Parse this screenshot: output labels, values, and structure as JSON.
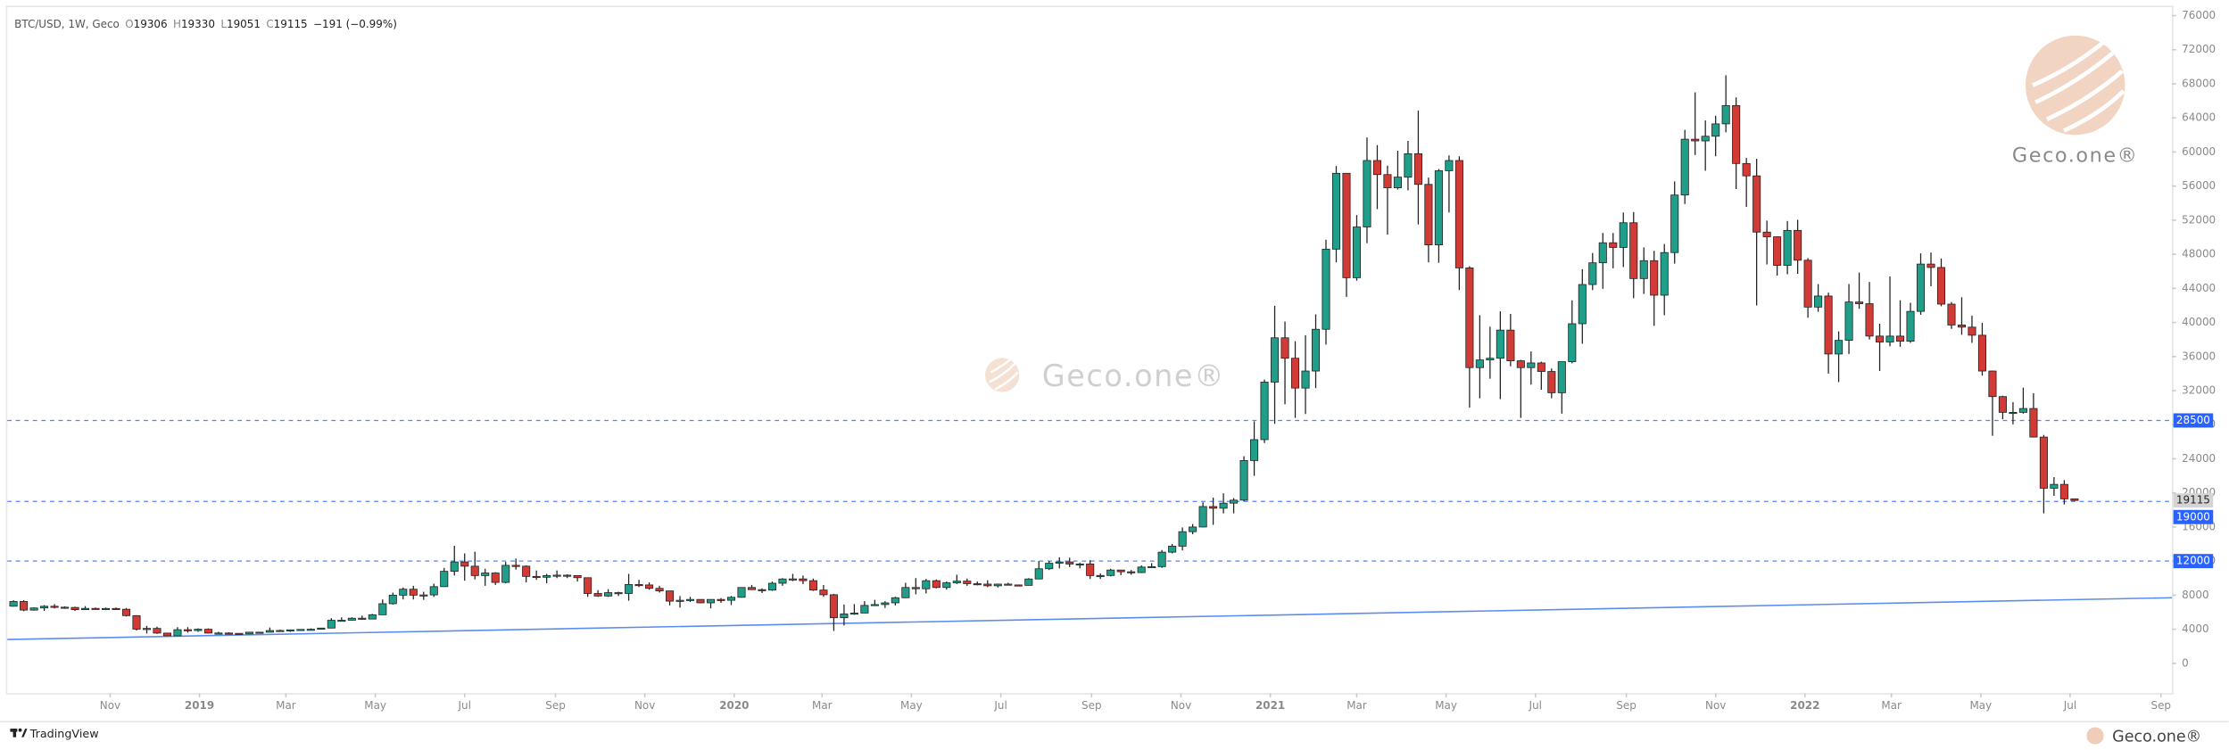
{
  "chart_data": {
    "type": "candlestick",
    "symbol": "BTC/USD, 1W, Geco",
    "ohlc_labels": [
      "O",
      "H",
      "L",
      "C"
    ],
    "change_label": "−191 (−0.99%)",
    "watermark": "Geco.one®",
    "footer_brand": "TradingView",
    "up_color": "#1f9e89",
    "down_color": "#d23a35",
    "hline_color": "#2962ff",
    "trend_color": "#5b8def",
    "grid": false,
    "xlim": [
      -0.6,
      210.5
    ],
    "ylim": [
      -3500,
      77000
    ],
    "yticks": [
      0,
      4000,
      8000,
      12000,
      16000,
      20000,
      24000,
      28000,
      32000,
      36000,
      40000,
      44000,
      48000,
      52000,
      56000,
      60000,
      64000,
      68000,
      72000,
      76000
    ],
    "xticks": [
      {
        "value": 9.43,
        "label": "Nov"
      },
      {
        "value": 18.14,
        "label": "2019"
      },
      {
        "value": 26.57,
        "label": "Mar"
      },
      {
        "value": 35.29,
        "label": "May"
      },
      {
        "value": 44,
        "label": "Jul"
      },
      {
        "value": 52.86,
        "label": "Sep"
      },
      {
        "value": 61.57,
        "label": "Nov"
      },
      {
        "value": 70.29,
        "label": "2020"
      },
      {
        "value": 78.86,
        "label": "Mar"
      },
      {
        "value": 87.57,
        "label": "May"
      },
      {
        "value": 96.29,
        "label": "Jul"
      },
      {
        "value": 105.14,
        "label": "Sep"
      },
      {
        "value": 113.86,
        "label": "Nov"
      },
      {
        "value": 122.57,
        "label": "2021"
      },
      {
        "value": 131,
        "label": "Mar"
      },
      {
        "value": 139.71,
        "label": "May"
      },
      {
        "value": 148.43,
        "label": "Jul"
      },
      {
        "value": 157.29,
        "label": "Sep"
      },
      {
        "value": 166,
        "label": "Nov"
      },
      {
        "value": 174.71,
        "label": "2022"
      },
      {
        "value": 183.14,
        "label": "Mar"
      },
      {
        "value": 191.86,
        "label": "May"
      },
      {
        "value": 200.57,
        "label": "Jul"
      },
      {
        "value": 209.43,
        "label": "Sep"
      }
    ],
    "hlines": [
      28500,
      19000,
      12000
    ],
    "trendline": {
      "x": [
        -0.6,
        210.5
      ],
      "y": [
        2800,
        7700
      ]
    },
    "ohlc": [
      [
        6700,
        7400,
        6650,
        7260
      ],
      [
        7260,
        7410,
        6120,
        6250
      ],
      [
        6250,
        6560,
        6180,
        6500
      ],
      [
        6500,
        6830,
        6150,
        6700
      ],
      [
        6700,
        6960,
        6440,
        6590
      ],
      [
        6590,
        6690,
        6400,
        6560
      ],
      [
        6560,
        6650,
        6150,
        6300
      ],
      [
        6300,
        6720,
        6280,
        6450
      ],
      [
        6450,
        6550,
        6380,
        6410
      ],
      [
        6410,
        6550,
        6320,
        6440
      ],
      [
        6440,
        6550,
        6320,
        6350
      ],
      [
        6350,
        6500,
        5500,
        5600
      ],
      [
        5600,
        5650,
        3850,
        4010
      ],
      [
        4010,
        4400,
        3500,
        4100
      ],
      [
        4100,
        4300,
        3450,
        3550
      ],
      [
        3550,
        3600,
        3200,
        3230
      ],
      [
        3230,
        4250,
        3200,
        3950
      ],
      [
        3950,
        4250,
        3600,
        3850
      ],
      [
        3850,
        4100,
        3700,
        4000
      ],
      [
        4000,
        4100,
        3500,
        3550
      ],
      [
        3550,
        3700,
        3500,
        3560
      ],
      [
        3560,
        3650,
        3450,
        3520
      ],
      [
        3520,
        3550,
        3400,
        3450
      ],
      [
        3450,
        3700,
        3400,
        3660
      ],
      [
        3660,
        3700,
        3550,
        3650
      ],
      [
        3650,
        4200,
        3650,
        3850
      ],
      [
        3850,
        3950,
        3750,
        3860
      ],
      [
        3860,
        3950,
        3700,
        3930
      ],
      [
        3930,
        4010,
        3850,
        3980
      ],
      [
        3980,
        4100,
        3950,
        4000
      ],
      [
        4000,
        4150,
        3950,
        4140
      ],
      [
        4140,
        5300,
        4100,
        5050
      ],
      [
        5050,
        5400,
        4950,
        5060
      ],
      [
        5060,
        5400,
        5000,
        5300
      ],
      [
        5300,
        5600,
        5100,
        5200
      ],
      [
        5200,
        5800,
        5200,
        5700
      ],
      [
        5700,
        7500,
        5700,
        7000
      ],
      [
        7000,
        8300,
        6900,
        8000
      ],
      [
        8000,
        8900,
        7500,
        8700
      ],
      [
        8700,
        9100,
        7500,
        8000
      ],
      [
        8000,
        8400,
        7450,
        8030
      ],
      [
        8030,
        9350,
        7800,
        9000
      ],
      [
        9000,
        11200,
        9000,
        10800
      ],
      [
        10800,
        13800,
        10300,
        11900
      ],
      [
        11900,
        12900,
        9700,
        11400
      ],
      [
        11400,
        13100,
        9850,
        10300
      ],
      [
        10300,
        11100,
        9100,
        10600
      ],
      [
        10600,
        10700,
        9200,
        9500
      ],
      [
        9500,
        11900,
        9400,
        11500
      ],
      [
        11500,
        12300,
        11000,
        11400
      ],
      [
        11400,
        11500,
        9500,
        10200
      ],
      [
        10200,
        10900,
        9800,
        10100
      ],
      [
        10100,
        10500,
        9400,
        10300
      ],
      [
        10300,
        10900,
        10000,
        10350
      ],
      [
        10350,
        10450,
        10000,
        10300
      ],
      [
        10300,
        10350,
        9600,
        10050
      ],
      [
        10050,
        10050,
        7800,
        8200
      ],
      [
        8200,
        8600,
        7800,
        7900
      ],
      [
        7900,
        8700,
        7800,
        8300
      ],
      [
        8300,
        8400,
        7900,
        8200
      ],
      [
        8200,
        10500,
        7350,
        9250
      ],
      [
        9250,
        9800,
        8950,
        9200
      ],
      [
        9200,
        9500,
        8650,
        8800
      ],
      [
        8800,
        9100,
        8300,
        8500
      ],
      [
        8500,
        8500,
        6800,
        7300
      ],
      [
        7300,
        7900,
        6550,
        7400
      ],
      [
        7400,
        7800,
        7200,
        7500
      ],
      [
        7500,
        7500,
        7050,
        7100
      ],
      [
        7100,
        7500,
        6450,
        7500
      ],
      [
        7500,
        7650,
        7100,
        7400
      ],
      [
        7400,
        7900,
        6850,
        7750
      ],
      [
        7750,
        8900,
        7700,
        8900
      ],
      [
        8900,
        9200,
        8600,
        8650
      ],
      [
        8650,
        8800,
        8250,
        8600
      ],
      [
        8600,
        9600,
        8500,
        9400
      ],
      [
        9400,
        10000,
        9100,
        9900
      ],
      [
        9900,
        10500,
        9650,
        9910
      ],
      [
        9910,
        10300,
        9300,
        9700
      ],
      [
        9700,
        9950,
        8500,
        8600
      ],
      [
        8600,
        9200,
        7800,
        8050
      ],
      [
        8050,
        8150,
        3800,
        5350
      ],
      [
        5350,
        6900,
        4450,
        5800
      ],
      [
        5800,
        6950,
        5700,
        5900
      ],
      [
        5900,
        7300,
        5900,
        6800
      ],
      [
        6800,
        7450,
        6750,
        6900
      ],
      [
        6900,
        7300,
        6500,
        7100
      ],
      [
        7100,
        7800,
        6800,
        7700
      ],
      [
        7700,
        9450,
        7650,
        8900
      ],
      [
        8900,
        10000,
        8100,
        8750
      ],
      [
        8750,
        9900,
        8200,
        9700
      ],
      [
        9700,
        9850,
        8800,
        8900
      ],
      [
        8900,
        9600,
        8650,
        9450
      ],
      [
        9450,
        10400,
        9300,
        9650
      ],
      [
        9650,
        9950,
        9100,
        9350
      ],
      [
        9350,
        9600,
        9150,
        9300
      ],
      [
        9300,
        9750,
        8950,
        9100
      ],
      [
        9100,
        9350,
        8900,
        9300
      ],
      [
        9300,
        9450,
        9150,
        9200
      ],
      [
        9200,
        9250,
        9050,
        9150
      ],
      [
        9150,
        10000,
        9150,
        9900
      ],
      [
        9900,
        12000,
        9900,
        11100
      ],
      [
        11100,
        12000,
        10950,
        11750
      ],
      [
        11750,
        12450,
        11150,
        11900
      ],
      [
        11900,
        12400,
        11300,
        11650
      ],
      [
        11650,
        11800,
        11150,
        11660
      ],
      [
        11660,
        12100,
        9900,
        10300
      ],
      [
        10300,
        10550,
        9900,
        10310
      ],
      [
        10310,
        11100,
        10200,
        10950
      ],
      [
        10950,
        10950,
        10350,
        10750
      ],
      [
        10750,
        10950,
        10400,
        10650
      ],
      [
        10650,
        11500,
        10600,
        11300
      ],
      [
        11300,
        11750,
        11250,
        11350
      ],
      [
        11350,
        13300,
        11200,
        13050
      ],
      [
        13050,
        14000,
        12900,
        13750
      ],
      [
        13750,
        15950,
        13250,
        15450
      ],
      [
        15450,
        16350,
        15150,
        16000
      ],
      [
        16000,
        18900,
        15950,
        18400
      ],
      [
        18400,
        19450,
        16250,
        18200
      ],
      [
        18200,
        19950,
        17600,
        18800
      ],
      [
        18800,
        19400,
        17600,
        19150
      ],
      [
        19150,
        24300,
        19000,
        23800
      ],
      [
        23800,
        28400,
        22000,
        26250
      ],
      [
        26250,
        33300,
        25850,
        33000
      ],
      [
        33000,
        41950,
        28100,
        38200
      ],
      [
        38200,
        40100,
        30400,
        35800
      ],
      [
        35800,
        37800,
        28800,
        32300
      ],
      [
        32300,
        38500,
        29250,
        34300
      ],
      [
        34300,
        40950,
        32300,
        39200
      ],
      [
        39200,
        49700,
        37400,
        48600
      ],
      [
        48600,
        58350,
        47050,
        57500
      ],
      [
        57500,
        57500,
        43000,
        45250
      ],
      [
        45250,
        52600,
        44900,
        51200
      ],
      [
        51200,
        61700,
        49300,
        59000
      ],
      [
        59000,
        60800,
        53300,
        57350
      ],
      [
        57350,
        58400,
        50300,
        55800
      ],
      [
        55800,
        60150,
        55600,
        57050
      ],
      [
        57050,
        61300,
        55500,
        59800
      ],
      [
        59800,
        64850,
        51500,
        56200
      ],
      [
        56200,
        57000,
        47050,
        49100
      ],
      [
        49100,
        58000,
        47000,
        57800
      ],
      [
        57800,
        59600,
        52900,
        59000
      ],
      [
        59000,
        59500,
        43800,
        46400
      ],
      [
        46400,
        46600,
        30000,
        34700
      ],
      [
        34700,
        40850,
        31100,
        35600
      ],
      [
        35600,
        39500,
        33400,
        35800
      ],
      [
        35800,
        41300,
        31000,
        39100
      ],
      [
        39100,
        41000,
        34850,
        35500
      ],
      [
        35500,
        35600,
        28800,
        34700
      ],
      [
        34700,
        36600,
        32700,
        35250
      ],
      [
        35250,
        35400,
        32100,
        34250
      ],
      [
        34250,
        34600,
        31100,
        31750
      ],
      [
        31750,
        35400,
        29300,
        35400
      ],
      [
        35400,
        42600,
        35200,
        39850
      ],
      [
        39850,
        46250,
        37500,
        44450
      ],
      [
        44450,
        48150,
        43800,
        47000
      ],
      [
        47000,
        50500,
        43950,
        49350
      ],
      [
        49350,
        50500,
        46350,
        48800
      ],
      [
        48800,
        52900,
        46500,
        51700
      ],
      [
        51700,
        52950,
        42850,
        45150
      ],
      [
        45150,
        48800,
        43350,
        47250
      ],
      [
        47250,
        48400,
        39600,
        43200
      ],
      [
        43200,
        49200,
        40850,
        48200
      ],
      [
        48200,
        56550,
        46900,
        54950
      ],
      [
        54950,
        62600,
        53900,
        61500
      ],
      [
        61500,
        67000,
        59650,
        61300
      ],
      [
        61300,
        63700,
        57800,
        61850
      ],
      [
        61850,
        64250,
        59500,
        63300
      ],
      [
        63300,
        69000,
        62300,
        65450
      ],
      [
        65450,
        66400,
        55650,
        58650
      ],
      [
        58650,
        59300,
        53550,
        57200
      ],
      [
        57200,
        59200,
        42000,
        50600
      ],
      [
        50600,
        51950,
        46800,
        50050
      ],
      [
        50050,
        50100,
        45500,
        46700
      ],
      [
        46700,
        51900,
        45650,
        50800
      ],
      [
        50800,
        52050,
        45700,
        47300
      ],
      [
        47300,
        47550,
        40550,
        41800
      ],
      [
        41800,
        44500,
        41250,
        43100
      ],
      [
        43100,
        43500,
        34000,
        36300
      ],
      [
        36300,
        38950,
        33000,
        37900
      ],
      [
        37900,
        44500,
        36300,
        42400
      ],
      [
        42400,
        45850,
        41600,
        42200
      ],
      [
        42200,
        44750,
        38000,
        38400
      ],
      [
        38400,
        39850,
        34300,
        37700
      ],
      [
        37700,
        45400,
        37200,
        38400
      ],
      [
        38400,
        42600,
        37150,
        37800
      ],
      [
        37800,
        42300,
        37600,
        41300
      ],
      [
        41300,
        48100,
        40900,
        46850
      ],
      [
        46850,
        48200,
        44250,
        46450
      ],
      [
        46450,
        47500,
        41900,
        42150
      ],
      [
        42150,
        42400,
        39250,
        39700
      ],
      [
        39700,
        42950,
        38550,
        39450
      ],
      [
        39450,
        40800,
        37600,
        38500
      ],
      [
        38500,
        39950,
        33750,
        34300
      ],
      [
        34300,
        34350,
        26700,
        31300
      ],
      [
        31300,
        31400,
        28650,
        29450
      ],
      [
        29450,
        30650,
        28050,
        29450
      ],
      [
        29450,
        32350,
        29300,
        29900
      ],
      [
        29900,
        31700,
        26500,
        26550
      ],
      [
        26550,
        26800,
        17600,
        20550
      ],
      [
        20550,
        21850,
        19650,
        21000
      ],
      [
        21000,
        21500,
        18650,
        19300
      ],
      [
        19306,
        19330,
        19051,
        19115
      ]
    ]
  }
}
